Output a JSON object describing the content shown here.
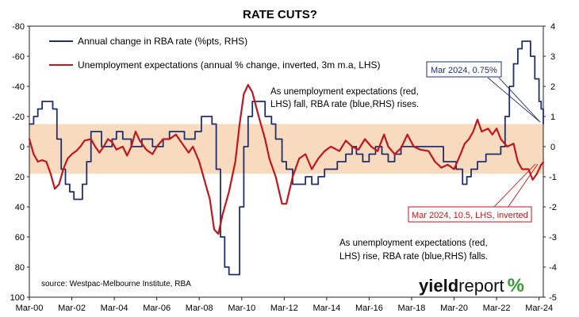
{
  "chart_data": {
    "type": "line",
    "title": "RATE CUTS?",
    "left_axis": {
      "ticks": [
        "-80",
        "-60",
        "-40",
        "-20",
        "0",
        "20",
        "40",
        "60",
        "80",
        "100"
      ],
      "ylim": [
        -80,
        100
      ],
      "inverted": true
    },
    "right_axis": {
      "ticks": [
        "4",
        "3",
        "2",
        "1",
        "0",
        "-1",
        "-2",
        "-3",
        "-4",
        "-5"
      ],
      "ylim": [
        -5,
        4
      ]
    },
    "x_tick_labels": [
      "Mar-00",
      "Mar-02",
      "Mar-04",
      "Mar-06",
      "Mar-08",
      "Mar-10",
      "Mar-12",
      "Mar-14",
      "Mar-16",
      "Mar-18",
      "Mar-20",
      "Mar-22",
      "Mar-24"
    ],
    "xlim": [
      2000.0,
      2024.2
    ],
    "series": [
      {
        "name": "Annual change in RBA rate (%pts, RHS)",
        "axis": "right",
        "color": "#1f2f6e",
        "points": [
          [
            2000.0,
            0.75
          ],
          [
            2000.2,
            1.0
          ],
          [
            2000.4,
            1.25
          ],
          [
            2000.6,
            1.5
          ],
          [
            2000.9,
            1.5
          ],
          [
            2001.1,
            1.25
          ],
          [
            2001.3,
            0.25
          ],
          [
            2001.5,
            -0.75
          ],
          [
            2001.7,
            -1.25
          ],
          [
            2001.9,
            -1.5
          ],
          [
            2002.1,
            -1.75
          ],
          [
            2002.3,
            -1.75
          ],
          [
            2002.5,
            -1.25
          ],
          [
            2002.7,
            -0.5
          ],
          [
            2002.9,
            0.5
          ],
          [
            2003.1,
            0.5
          ],
          [
            2003.4,
            0.0
          ],
          [
            2003.7,
            0.0
          ],
          [
            2003.9,
            0.25
          ],
          [
            2004.1,
            0.5
          ],
          [
            2004.4,
            0.25
          ],
          [
            2004.8,
            0.0
          ],
          [
            2005.1,
            0.0
          ],
          [
            2005.3,
            0.25
          ],
          [
            2005.5,
            0.25
          ],
          [
            2005.8,
            0.0
          ],
          [
            2006.1,
            0.0
          ],
          [
            2006.3,
            0.25
          ],
          [
            2006.6,
            0.5
          ],
          [
            2006.9,
            0.5
          ],
          [
            2007.3,
            0.25
          ],
          [
            2007.6,
            0.25
          ],
          [
            2007.8,
            0.5
          ],
          [
            2008.1,
            1.0
          ],
          [
            2008.4,
            1.0
          ],
          [
            2008.6,
            0.75
          ],
          [
            2008.8,
            -0.75
          ],
          [
            2009.0,
            -3.0
          ],
          [
            2009.2,
            -4.0
          ],
          [
            2009.4,
            -4.25
          ],
          [
            2009.7,
            -4.25
          ],
          [
            2009.9,
            -2.0
          ],
          [
            2010.1,
            0.0
          ],
          [
            2010.3,
            1.0
          ],
          [
            2010.5,
            1.5
          ],
          [
            2010.9,
            1.5
          ],
          [
            2011.1,
            1.0
          ],
          [
            2011.4,
            0.75
          ],
          [
            2011.6,
            0.25
          ],
          [
            2011.9,
            -0.5
          ],
          [
            2012.1,
            -0.75
          ],
          [
            2012.4,
            -1.25
          ],
          [
            2012.8,
            -1.25
          ],
          [
            2013.0,
            -1.0
          ],
          [
            2013.3,
            -1.25
          ],
          [
            2013.6,
            -1.0
          ],
          [
            2013.9,
            -0.75
          ],
          [
            2014.2,
            -0.75
          ],
          [
            2014.5,
            -0.5
          ],
          [
            2014.9,
            -0.25
          ],
          [
            2015.2,
            0.0
          ],
          [
            2015.4,
            -0.25
          ],
          [
            2015.7,
            -0.5
          ],
          [
            2016.0,
            -0.25
          ],
          [
            2016.3,
            0.0
          ],
          [
            2016.6,
            -0.25
          ],
          [
            2016.9,
            -0.5
          ],
          [
            2017.2,
            -0.25
          ],
          [
            2017.5,
            0.0
          ],
          [
            2017.8,
            0.0
          ],
          [
            2018.5,
            0.0
          ],
          [
            2019.2,
            0.0
          ],
          [
            2019.5,
            -0.5
          ],
          [
            2019.8,
            -0.5
          ],
          [
            2020.1,
            -0.75
          ],
          [
            2020.4,
            -1.25
          ],
          [
            2020.6,
            -1.0
          ],
          [
            2020.8,
            -0.75
          ],
          [
            2021.1,
            -0.5
          ],
          [
            2021.5,
            -0.25
          ],
          [
            2021.9,
            -0.25
          ],
          [
            2022.2,
            0.0
          ],
          [
            2022.4,
            1.0
          ],
          [
            2022.6,
            2.0
          ],
          [
            2022.8,
            2.75
          ],
          [
            2023.0,
            3.25
          ],
          [
            2023.2,
            3.5
          ],
          [
            2023.4,
            3.5
          ],
          [
            2023.6,
            3.0
          ],
          [
            2023.8,
            2.25
          ],
          [
            2024.0,
            1.5
          ],
          [
            2024.1,
            1.25
          ],
          [
            2024.2,
            0.75
          ]
        ]
      },
      {
        "name": "Unemployment expectations (annual % change, inverted, 3m m.a, LHS)",
        "axis": "left",
        "color": "#c0161c",
        "points": [
          [
            2000.0,
            -5
          ],
          [
            2000.2,
            5
          ],
          [
            2000.4,
            10
          ],
          [
            2000.6,
            9
          ],
          [
            2000.8,
            10
          ],
          [
            2001.0,
            18
          ],
          [
            2001.2,
            28
          ],
          [
            2001.4,
            25
          ],
          [
            2001.6,
            15
          ],
          [
            2001.8,
            8
          ],
          [
            2002.0,
            5
          ],
          [
            2002.2,
            3
          ],
          [
            2002.4,
            0
          ],
          [
            2002.6,
            -4
          ],
          [
            2002.9,
            -5
          ],
          [
            2003.1,
            0
          ],
          [
            2003.3,
            4
          ],
          [
            2003.5,
            0
          ],
          [
            2003.7,
            -5
          ],
          [
            2003.9,
            -3
          ],
          [
            2004.1,
            2
          ],
          [
            2004.4,
            0
          ],
          [
            2004.6,
            6
          ],
          [
            2004.8,
            0
          ],
          [
            2005.0,
            -10
          ],
          [
            2005.2,
            -4
          ],
          [
            2005.5,
            2
          ],
          [
            2005.8,
            5
          ],
          [
            2006.0,
            0
          ],
          [
            2006.3,
            -5
          ],
          [
            2006.6,
            -5
          ],
          [
            2006.9,
            -8
          ],
          [
            2007.2,
            -2
          ],
          [
            2007.5,
            4
          ],
          [
            2007.7,
            0
          ],
          [
            2008.0,
            10
          ],
          [
            2008.3,
            25
          ],
          [
            2008.5,
            35
          ],
          [
            2008.7,
            55
          ],
          [
            2008.9,
            58
          ],
          [
            2009.1,
            45
          ],
          [
            2009.4,
            30
          ],
          [
            2009.7,
            10
          ],
          [
            2009.9,
            -15
          ],
          [
            2010.1,
            -35
          ],
          [
            2010.3,
            -41
          ],
          [
            2010.5,
            -36
          ],
          [
            2010.8,
            -20
          ],
          [
            2011.1,
            -5
          ],
          [
            2011.3,
            8
          ],
          [
            2011.6,
            20
          ],
          [
            2011.9,
            38
          ],
          [
            2012.1,
            38
          ],
          [
            2012.4,
            20
          ],
          [
            2012.7,
            8
          ],
          [
            2013.0,
            5
          ],
          [
            2013.3,
            15
          ],
          [
            2013.6,
            8
          ],
          [
            2013.9,
            3
          ],
          [
            2014.2,
            0
          ],
          [
            2014.6,
            3
          ],
          [
            2014.9,
            -4
          ],
          [
            2015.2,
            0
          ],
          [
            2015.5,
            2
          ],
          [
            2015.8,
            -5
          ],
          [
            2016.1,
            0
          ],
          [
            2016.4,
            3
          ],
          [
            2016.7,
            -8
          ],
          [
            2016.9,
            0
          ],
          [
            2017.2,
            5
          ],
          [
            2017.5,
            1
          ],
          [
            2017.8,
            -8
          ],
          [
            2018.1,
            0
          ],
          [
            2018.4,
            2
          ],
          [
            2018.8,
            3
          ],
          [
            2019.1,
            10
          ],
          [
            2019.4,
            14
          ],
          [
            2019.7,
            12
          ],
          [
            2020.0,
            15
          ],
          [
            2020.3,
            5
          ],
          [
            2020.5,
            -2
          ],
          [
            2020.7,
            -5
          ],
          [
            2020.9,
            -10
          ],
          [
            2021.1,
            -18
          ],
          [
            2021.3,
            -10
          ],
          [
            2021.6,
            -12
          ],
          [
            2021.8,
            -8
          ],
          [
            2022.0,
            -12
          ],
          [
            2022.2,
            -5
          ],
          [
            2022.5,
            0
          ],
          [
            2022.8,
            -2
          ],
          [
            2023.0,
            10
          ],
          [
            2023.2,
            15
          ],
          [
            2023.5,
            15
          ],
          [
            2023.7,
            22
          ],
          [
            2023.9,
            18
          ],
          [
            2024.1,
            12
          ],
          [
            2024.2,
            10.5
          ]
        ]
      }
    ],
    "shaded_band": {
      "left_range": [
        -15,
        18
      ]
    },
    "annotations": [
      {
        "text_lines": [
          "As unemployment expectations (red,",
          "LHS) fall, RBA rate (blue,RHS) rises."
        ]
      },
      {
        "text_lines": [
          "As unemployment expectations (red,",
          "LHS) rise, RBA rate (blue,RHS) falls."
        ]
      },
      {
        "label": "Mar 2024, 0.75%",
        "color": "#1f2f6e"
      },
      {
        "label": "Mar 2024, 10.5, LHS, inverted",
        "color": "#c0161c"
      }
    ],
    "source": "source: Westpac-Melbourne Institute, RBA",
    "grid": false,
    "legend": "top-left"
  },
  "logo": {
    "part1": "yield",
    "part2": "report",
    "part3": "%"
  }
}
